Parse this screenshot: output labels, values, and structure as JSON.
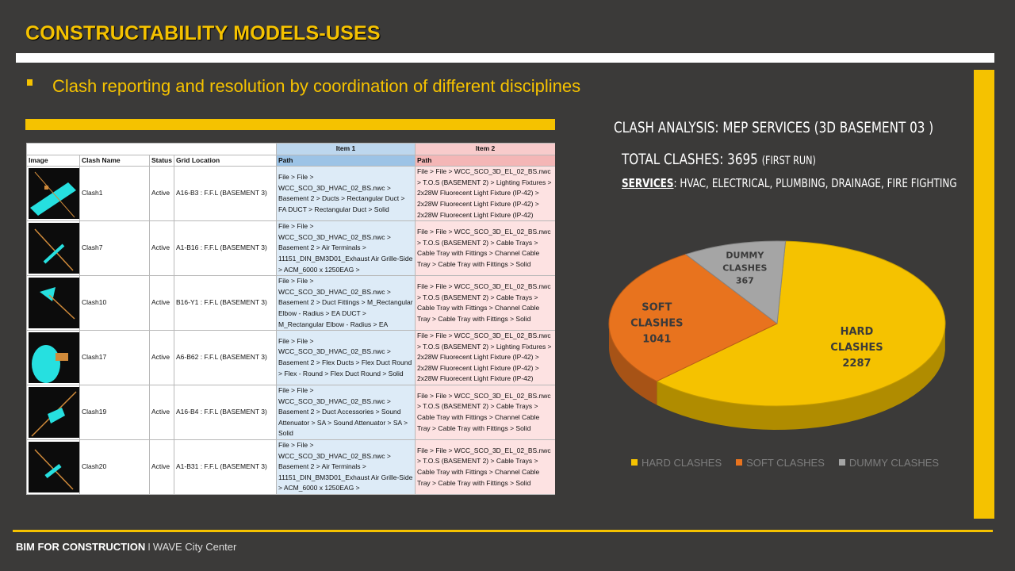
{
  "slide": {
    "title": "CONSTRUCTABILITY MODELS-USES",
    "subtitle": "Clash reporting and resolution by coordination of different disciplines",
    "footer_brand": "BIM FOR CONSTRUCTION",
    "footer_separator": "I",
    "footer_location": "WAVE City Center"
  },
  "colors": {
    "accent": "#f5c200",
    "background": "#3b3a39",
    "hard": "#f5c200",
    "soft": "#e8731e",
    "dummy": "#a5a5a5"
  },
  "table": {
    "group_headers": {
      "item1": "Item 1",
      "item2": "Item 2"
    },
    "columns": [
      "Image",
      "Clash Name",
      "Status",
      "Grid Location",
      "Path",
      "Path"
    ],
    "rows": [
      {
        "icon": "clash-thumbnail-icon",
        "name": "Clash1",
        "status": "Active",
        "grid": "A16-B3 : F.F.L (BASEMENT 3)",
        "item1": "File > File > WCC_SCO_3D_HVAC_02_BS.nwc > Basement 2 > Ducts > Rectangular Duct > FA DUCT > Rectangular Duct > Solid",
        "item2": "File > File > WCC_SCO_3D_EL_02_BS.nwc > T.O.S (BASEMENT 2) > Lighting Fixtures > 2x28W Fluorecent Light Fixture (IP-42) > 2x28W Fluorecent Light Fixture (IP-42) > 2x28W Fluorecent Light Fixture (IP-42)"
      },
      {
        "icon": "clash-thumbnail-icon",
        "name": "Clash7",
        "status": "Active",
        "grid": "A1-B16 : F.F.L (BASEMENT 3)",
        "item1": "File > File > WCC_SCO_3D_HVAC_02_BS.nwc > Basement 2 > Air Terminals > 11151_DIN_BM3D01_Exhaust Air Grille-Side > ACM_6000 x 1250EAG >",
        "item2": "File > File > WCC_SCO_3D_EL_02_BS.nwc > T.O.S (BASEMENT 2) > Cable Trays > Cable Tray with Fittings > Channel Cable Tray > Cable Tray with Fittings > Solid"
      },
      {
        "icon": "clash-thumbnail-icon",
        "name": "Clash10",
        "status": "Active",
        "grid": "B16-Y1 : F.F.L (BASEMENT 3)",
        "item1": "File > File > WCC_SCO_3D_HVAC_02_BS.nwc > Basement 2 > Duct Fittings > M_Rectangular Elbow - Radius > EA DUCT > M_Rectangular Elbow - Radius > EA",
        "item2": "File > File > WCC_SCO_3D_EL_02_BS.nwc > T.O.S (BASEMENT 2) > Cable Trays > Cable Tray with Fittings > Channel Cable Tray > Cable Tray with Fittings > Solid"
      },
      {
        "icon": "clash-thumbnail-icon",
        "name": "Clash17",
        "status": "Active",
        "grid": "A6-B62 : F.F.L (BASEMENT 3)",
        "item1": "File > File > WCC_SCO_3D_HVAC_02_BS.nwc > Basement 2 > Flex Ducts > Flex Duct Round > Flex - Round > Flex Duct Round > Solid",
        "item2": "File > File > WCC_SCO_3D_EL_02_BS.nwc > T.O.S (BASEMENT 2) > Lighting Fixtures > 2x28W Fluorecent Light Fixture (IP-42) > 2x28W Fluorecent Light Fixture (IP-42) > 2x28W Fluorecent Light Fixture (IP-42)"
      },
      {
        "icon": "clash-thumbnail-icon",
        "name": "Clash19",
        "status": "Active",
        "grid": "A16-B4 : F.F.L (BASEMENT 3)",
        "item1": "File > File > WCC_SCO_3D_HVAC_02_BS.nwc > Basement 2 > Duct Accessories > Sound Attenuator > SA > Sound Attenuator > SA > Solid",
        "item2": "File > File > WCC_SCO_3D_EL_02_BS.nwc > T.O.S (BASEMENT 2) > Cable Trays > Cable Tray with Fittings > Channel Cable Tray > Cable Tray with Fittings > Solid"
      },
      {
        "icon": "clash-thumbnail-icon",
        "name": "Clash20",
        "status": "Active",
        "grid": "A1-B31 : F.F.L (BASEMENT 3)",
        "item1": "File > File > WCC_SCO_3D_HVAC_02_BS.nwc > Basement 2 > Air Terminals > 11151_DIN_BM3D01_Exhaust Air Grille-Side > ACM_6000 x 1250EAG >",
        "item2": "File > File > WCC_SCO_3D_EL_02_BS.nwc > T.O.S (BASEMENT 2) > Cable Trays > Cable Tray with Fittings > Channel Cable Tray > Cable Tray with Fittings > Solid"
      }
    ]
  },
  "chart_heading": {
    "title": "CLASH ANALYSIS: MEP SERVICES (3D BASEMENT 03 )",
    "total_label": "TOTAL CLASHES: 3695",
    "total_note": "(FIRST RUN)",
    "services_label": "SERVICES",
    "services_list": ": HVAC, ELECTRICAL, PLUMBING, DRAINAGE, FIRE FIGHTING"
  },
  "chart_data": {
    "type": "pie",
    "title": "",
    "categories": [
      "HARD CLASHES",
      "SOFT CLASHES",
      "DUMMY CLASHES"
    ],
    "values": [
      2287,
      1041,
      367
    ],
    "slice_labels": [
      {
        "line1": "HARD",
        "line2": "CLASHES",
        "value": "2287"
      },
      {
        "line1": "SOFT",
        "line2": "CLASHES",
        "value": "1041"
      },
      {
        "line1": "DUMMY",
        "line2": "CLASHES",
        "value": "367"
      }
    ],
    "colors": [
      "#f5c200",
      "#e8731e",
      "#a5a5a5"
    ],
    "legend_position": "bottom",
    "style": "3d"
  }
}
